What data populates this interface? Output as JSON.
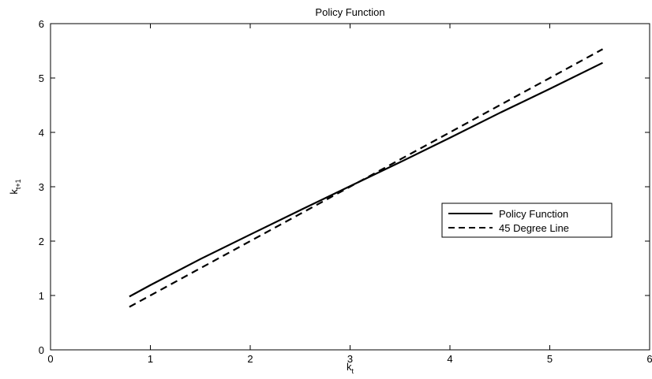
{
  "chart_data": {
    "type": "line",
    "title": "Policy Function",
    "xlabel": {
      "base": "k",
      "sub": "t"
    },
    "ylabel": {
      "base": "k",
      "sub": "t+1"
    },
    "xlim": [
      0,
      6
    ],
    "ylim": [
      0,
      6
    ],
    "xticks": [
      "0",
      "1",
      "2",
      "3",
      "4",
      "5",
      "6"
    ],
    "yticks": [
      "0",
      "1",
      "2",
      "3",
      "4",
      "5",
      "6"
    ],
    "grid": false,
    "legend_position": "right",
    "series": [
      {
        "name": "Policy Function",
        "style": "solid",
        "color": "#000000",
        "x": [
          0.79,
          1.0,
          1.5,
          2.0,
          2.5,
          3.0,
          3.5,
          4.0,
          4.5,
          5.0,
          5.53
        ],
        "y": [
          0.98,
          1.19,
          1.67,
          2.12,
          2.57,
          3.01,
          3.45,
          3.9,
          4.36,
          4.8,
          5.28
        ]
      },
      {
        "name": "45 Degree Line",
        "style": "dashed",
        "color": "#000000",
        "x": [
          0.79,
          5.53
        ],
        "y": [
          0.79,
          5.53
        ]
      }
    ]
  }
}
